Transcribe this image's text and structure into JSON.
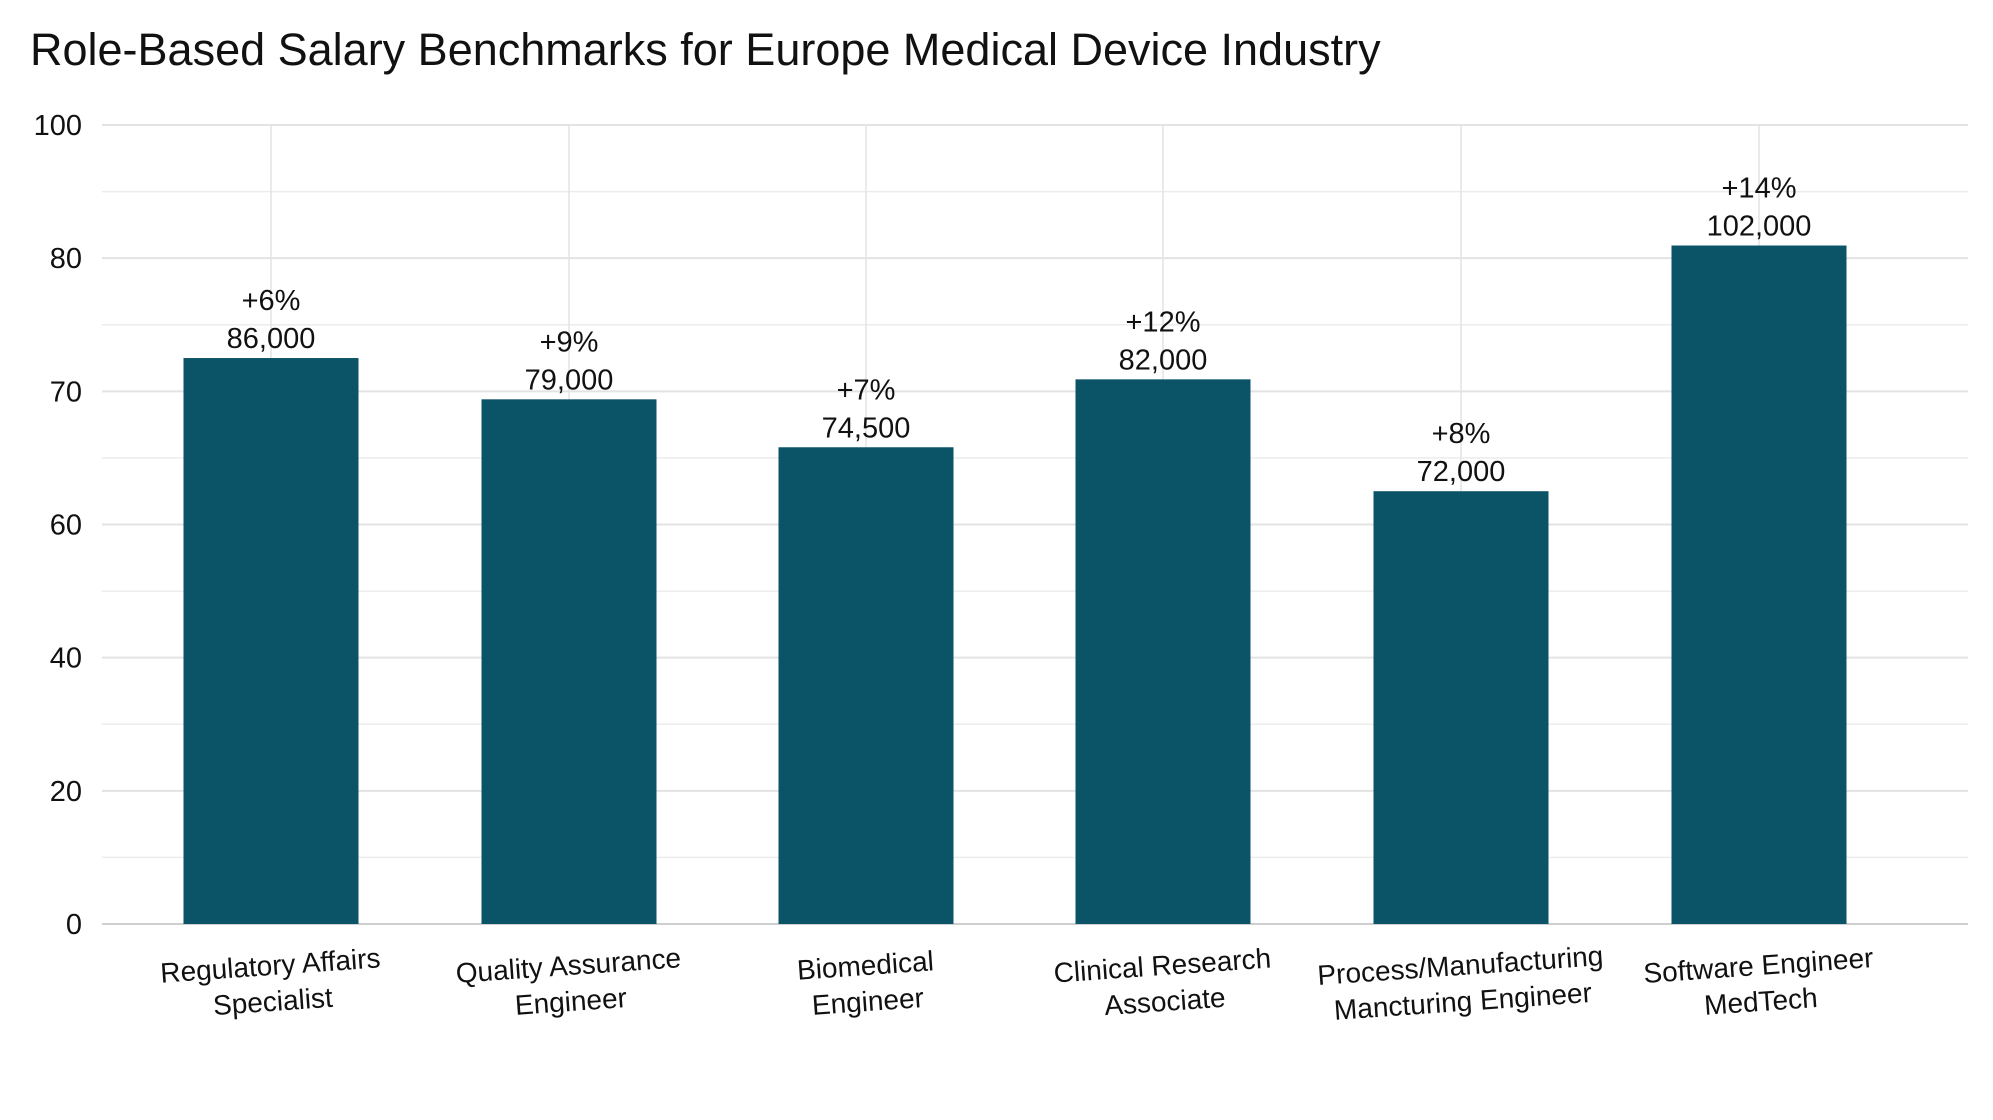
{
  "chart_data": {
    "type": "bar",
    "title": "Role-Based Salary Benchmarks for Europe Medical Device Industry",
    "xlabel": "",
    "ylabel": "",
    "y_tick_labels": [
      "0",
      "20",
      "40",
      "60",
      "70",
      "80",
      "100"
    ],
    "grid": true,
    "categories": [
      [
        "Regulatory Affairs",
        "Specialist"
      ],
      [
        "Quality Assurance",
        "Engineer"
      ],
      [
        "Biomedical",
        "Engineer"
      ],
      [
        "Clinical Research",
        "Associate"
      ],
      [
        "Process/Manufacturing",
        "Mancturing Engineer"
      ],
      [
        "Software Engineer",
        "MedTech"
      ]
    ],
    "values": [
      72.5,
      69.4,
      65.8,
      70.9,
      62.5,
      81.9
    ],
    "value_labels": [
      "86,000",
      "79,000",
      "74,500",
      "82,000",
      "72,000",
      "102,000"
    ],
    "growth_labels": [
      "+6%",
      "+9%",
      "+7%",
      "+12%",
      "+8%",
      "+14%"
    ],
    "bar_color": "#0b5366"
  }
}
